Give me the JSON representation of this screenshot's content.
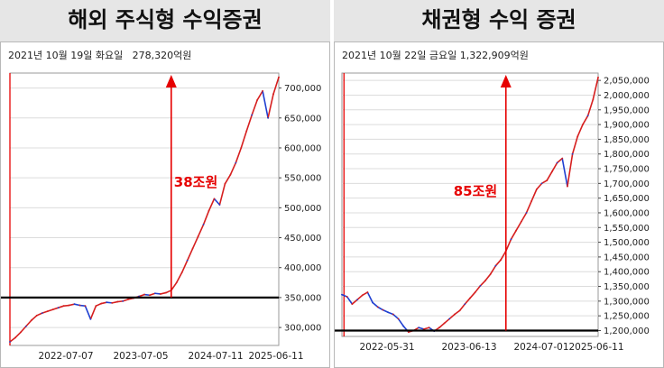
{
  "colors": {
    "line_blue": "#1f3fd1",
    "line_red": "#d61f1f",
    "marker_red": "#e60000",
    "baseline": "#000000",
    "plot_border": "#9a9a9a"
  },
  "chart_data": [
    {
      "type": "line",
      "title": "해외 주식형 수익증권",
      "subtitle": "2021년 10월 19일 화요일   278,320억원",
      "y_ticks": [
        "700,000",
        "650,000",
        "600,000",
        "550,000",
        "500,000",
        "450,000",
        "400,000",
        "350,000",
        "300,000"
      ],
      "x_ticks": [
        "2022-07-07",
        "2023-07-05",
        "2024-07-11",
        "2025-06-11"
      ],
      "ylim": [
        270000,
        725000
      ],
      "x": [
        0,
        20,
        40,
        60,
        80,
        100,
        120,
        140,
        160,
        180,
        200,
        220,
        240,
        260,
        280,
        300,
        320,
        340,
        360,
        380,
        400,
        420,
        440,
        460,
        480,
        500,
        520,
        540,
        560,
        580,
        600,
        620,
        640,
        660,
        680,
        700,
        720,
        740,
        760,
        780,
        800,
        820,
        840,
        860,
        880,
        900,
        920,
        940,
        960,
        980,
        1000
      ],
      "series": [
        {
          "values": [
            276000,
            283000,
            292000,
            302000,
            312000,
            320000,
            324000,
            327000,
            330000,
            333000,
            336000,
            337000,
            339000,
            337000,
            336000,
            314000,
            336000,
            340000,
            342000,
            341000,
            343000,
            344000,
            347000,
            349000,
            352000,
            355000,
            354000,
            357000,
            356000,
            358000,
            362000,
            375000,
            392000,
            412000,
            432000,
            452000,
            472000,
            495000,
            515000,
            505000,
            540000,
            555000,
            575000,
            600000,
            628000,
            655000,
            680000,
            695000,
            650000,
            690000,
            718000
          ]
        }
      ],
      "reference_value": 350000,
      "annotation": {
        "label": "38조원",
        "from": 350000,
        "to": 730000
      },
      "start_marker_x": 0,
      "arrow_x": 600,
      "grid": true
    },
    {
      "type": "line",
      "title": "채권형 수익 증권",
      "subtitle": "2021년 10월 22일 금요일 1,322,909억원",
      "y_ticks": [
        "2,050,000",
        "2,000,000",
        "1,950,000",
        "1,900,000",
        "1,850,000",
        "1,800,000",
        "1,750,000",
        "1,700,000",
        "1,650,000",
        "1,600,000",
        "1,550,000",
        "1,500,000",
        "1,450,000",
        "1,400,000",
        "1,350,000",
        "1,300,000",
        "1,250,000",
        "1,200,000"
      ],
      "x_ticks": [
        "2022-05-31",
        "2023-06-13",
        "2024-07-01",
        "2025-06-11"
      ],
      "ylim": [
        1180000,
        2075000
      ],
      "x": [
        0,
        20,
        40,
        60,
        80,
        100,
        120,
        140,
        160,
        180,
        200,
        220,
        240,
        260,
        280,
        300,
        320,
        340,
        360,
        380,
        400,
        420,
        440,
        460,
        480,
        500,
        520,
        540,
        560,
        580,
        600,
        620,
        640,
        660,
        680,
        700,
        720,
        740,
        760,
        780,
        800,
        820,
        840,
        860,
        880,
        900,
        920,
        940,
        960,
        980,
        1000
      ],
      "series": [
        {
          "values": [
            1322000,
            1315000,
            1290000,
            1305000,
            1320000,
            1330000,
            1295000,
            1280000,
            1270000,
            1262000,
            1255000,
            1240000,
            1215000,
            1195000,
            1200000,
            1210000,
            1205000,
            1210000,
            1198000,
            1210000,
            1225000,
            1240000,
            1255000,
            1268000,
            1290000,
            1310000,
            1330000,
            1352000,
            1370000,
            1392000,
            1420000,
            1440000,
            1470000,
            1510000,
            1540000,
            1570000,
            1600000,
            1640000,
            1680000,
            1700000,
            1710000,
            1740000,
            1770000,
            1785000,
            1690000,
            1800000,
            1860000,
            1900000,
            1930000,
            1985000,
            2060000
          ]
        }
      ],
      "reference_value": 1200000,
      "annotation": {
        "label": "85조원",
        "from": 1200000,
        "to": 2085000
      },
      "start_marker_x": 8,
      "arrow_x": 640,
      "grid": true
    }
  ]
}
